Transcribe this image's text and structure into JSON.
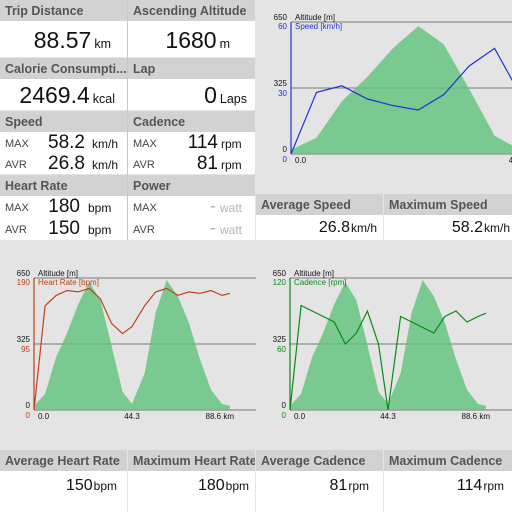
{
  "tiles": {
    "trip_distance": {
      "label": "Trip Distance",
      "value": "88.57",
      "unit": "km"
    },
    "ascending_altitude": {
      "label": "Ascending Altitude",
      "value": "1680",
      "unit": "m"
    },
    "calorie": {
      "label": "Calorie Consumpti...",
      "value": "2469.4",
      "unit": "kcal"
    },
    "lap": {
      "label": "Lap",
      "value": "0",
      "unit": "Laps"
    },
    "speed": {
      "label": "Speed",
      "max_label": "MAX",
      "max": "58.2",
      "avr_label": "AVR",
      "avr": "26.8",
      "unit": "km/h"
    },
    "cadence": {
      "label": "Cadence",
      "max_label": "MAX",
      "max": "114",
      "avr_label": "AVR",
      "avr": "81",
      "unit": "rpm"
    },
    "heart_rate": {
      "label": "Heart Rate",
      "max_label": "MAX",
      "max": "180",
      "avr_label": "AVR",
      "avr": "150",
      "unit": "bpm"
    },
    "power": {
      "label": "Power",
      "max_label": "MAX",
      "max": "-",
      "avr_label": "AVR",
      "avr": "-",
      "unit": "watt"
    }
  },
  "stats_top": [
    {
      "label": "Average Speed",
      "value": "26.8",
      "unit": "km/h"
    },
    {
      "label": "Maximum Speed",
      "value": "58.2",
      "unit": "km/h"
    }
  ],
  "stats_bottom": [
    {
      "label": "Average Heart Rate",
      "value": "150",
      "unit": "bpm"
    },
    {
      "label": "Maximum Heart Rate",
      "value": "180",
      "unit": "bpm"
    },
    {
      "label": "Average Cadence",
      "value": "81",
      "unit": "rpm"
    },
    {
      "label": "Maximum Cadence",
      "value": "114",
      "unit": "rpm"
    }
  ],
  "colors": {
    "altitude_fill": "#5ec27a",
    "speed": "#2233cc",
    "heart_rate": "#c0401a",
    "cadence": "#0a8a1a"
  },
  "chart_data": [
    {
      "type": "area",
      "x_ticks": [
        "0.0",
        "44.3",
        "88.6 km"
      ],
      "x": [
        0,
        5,
        10,
        15,
        20,
        25,
        30,
        35,
        40,
        44.3,
        50,
        55,
        60,
        65,
        70,
        75,
        80,
        85,
        88.6
      ],
      "ylim_left": [
        0,
        650
      ],
      "series": [
        {
          "name": "Altitude [m]",
          "axis": "left",
          "ticks": [
            "650",
            "325",
            "0"
          ],
          "ylim": [
            0,
            650
          ],
          "values": [
            20,
            80,
            260,
            380,
            520,
            630,
            540,
            320,
            90,
            30,
            180,
            480,
            640,
            560,
            430,
            250,
            100,
            30,
            20
          ]
        },
        {
          "name": "Speed [km/h]",
          "axis": "right",
          "ticks": [
            "60",
            "30",
            "0"
          ],
          "ylim": [
            0,
            60
          ],
          "values": [
            0,
            28,
            31,
            25,
            22,
            20,
            27,
            40,
            48,
            30,
            35,
            30,
            25,
            20,
            38,
            50,
            42,
            28,
            30
          ]
        }
      ]
    },
    {
      "type": "area",
      "x_ticks": [
        "0.0",
        "44.3",
        "88.6 km"
      ],
      "x": [
        0,
        5,
        10,
        15,
        20,
        25,
        30,
        35,
        40,
        44.3,
        50,
        55,
        60,
        65,
        70,
        75,
        80,
        85,
        88.6
      ],
      "series": [
        {
          "name": "Altitude [m]",
          "axis": "left",
          "ticks": [
            "650",
            "325",
            "0"
          ],
          "ylim": [
            0,
            650
          ],
          "values": [
            20,
            80,
            260,
            380,
            520,
            630,
            540,
            320,
            90,
            30,
            180,
            480,
            640,
            560,
            430,
            250,
            100,
            30,
            20
          ]
        },
        {
          "name": "Heart Rate [bpm]",
          "axis": "right",
          "ticks": [
            "190",
            "95",
            "0"
          ],
          "ylim": [
            0,
            190
          ],
          "values": [
            0,
            150,
            165,
            172,
            170,
            175,
            160,
            125,
            110,
            120,
            150,
            170,
            175,
            165,
            170,
            168,
            172,
            165,
            168
          ]
        }
      ]
    },
    {
      "type": "area",
      "x_ticks": [
        "0.0",
        "44.3",
        "88.6 km"
      ],
      "x": [
        0,
        5,
        10,
        15,
        20,
        25,
        30,
        35,
        40,
        44.3,
        50,
        55,
        60,
        65,
        70,
        75,
        80,
        85,
        88.6
      ],
      "series": [
        {
          "name": "Altitude [m]",
          "axis": "left",
          "ticks": [
            "650",
            "325",
            "0"
          ],
          "ylim": [
            0,
            650
          ],
          "values": [
            20,
            80,
            260,
            380,
            520,
            630,
            540,
            320,
            90,
            30,
            180,
            480,
            640,
            560,
            430,
            250,
            100,
            30,
            20
          ]
        },
        {
          "name": "Cadence [rpm]",
          "axis": "right",
          "ticks": [
            "120",
            "60",
            "0"
          ],
          "ylim": [
            0,
            120
          ],
          "values": [
            0,
            95,
            90,
            85,
            80,
            60,
            70,
            90,
            60,
            0,
            85,
            80,
            75,
            70,
            85,
            90,
            80,
            85,
            88
          ]
        }
      ]
    }
  ]
}
